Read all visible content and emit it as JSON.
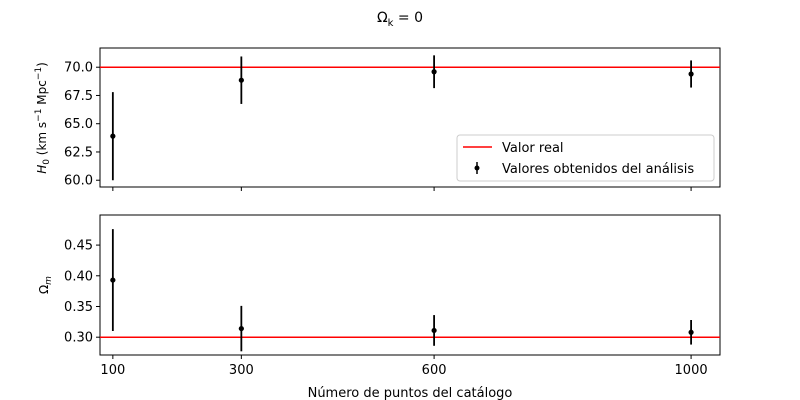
{
  "chart_data": {
    "type": "scatter",
    "suptitle": "Ω",
    "suptitle_sub": "k",
    "suptitle_rest": " = 0",
    "xlabel": "Número de puntos del catálogo",
    "x_ticks": [
      100,
      300,
      600,
      1000
    ],
    "x_tick_labels": [
      "100",
      "300",
      "600",
      "1000"
    ],
    "xlim": [
      80,
      1045
    ],
    "panels": [
      {
        "id": "h0",
        "ylabel_main": "H",
        "ylabel_sub": "0",
        "ylabel_rest": " (km s",
        "ylabel_sup1": "−1",
        "ylabel_mid": " Mpc",
        "ylabel_sup2": "−1",
        "ylabel_end": ")",
        "ylim": [
          59.4,
          71.7
        ],
        "y_ticks": [
          60.0,
          62.5,
          65.0,
          67.5,
          70.0
        ],
        "y_tick_labels": [
          "60.0",
          "62.5",
          "65.0",
          "67.5",
          "70.0"
        ],
        "true_value": 70.0,
        "x": [
          100,
          300,
          600,
          1000
        ],
        "y": [
          63.9,
          68.85,
          69.6,
          69.4
        ],
        "yerr": [
          3.9,
          2.1,
          1.45,
          1.2
        ],
        "legend": {
          "placement": "lower-right",
          "line_label": "Valor real",
          "points_label": "Valores obtenidos del análisis"
        }
      },
      {
        "id": "om",
        "ylabel_main": "Ω",
        "ylabel_sub": "m",
        "ylim": [
          0.271,
          0.499
        ],
        "y_ticks": [
          0.3,
          0.35,
          0.4,
          0.45
        ],
        "y_tick_labels": [
          "0.30",
          "0.35",
          "0.40",
          "0.45"
        ],
        "true_value": 0.3,
        "x": [
          100,
          300,
          600,
          1000
        ],
        "y": [
          0.393,
          0.314,
          0.311,
          0.308
        ],
        "yerr": [
          0.083,
          0.037,
          0.025,
          0.02
        ]
      }
    ],
    "colors": {
      "true_line": "#ff0000",
      "points": "#000000"
    }
  }
}
